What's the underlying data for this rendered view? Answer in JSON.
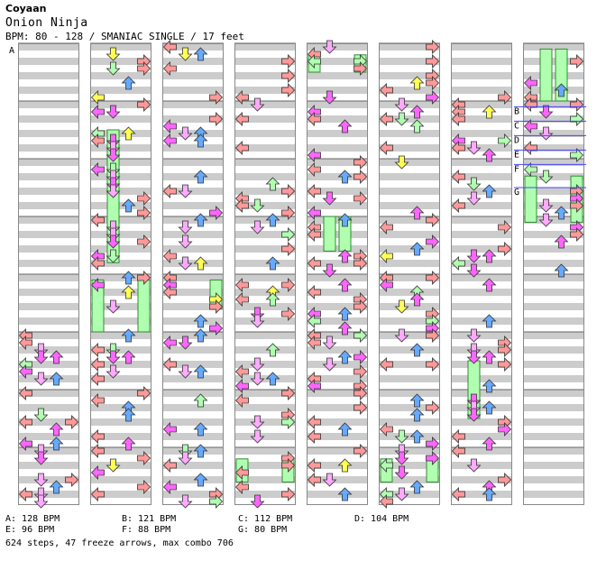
{
  "song": {
    "artist": "Coyaan",
    "title": "Onion Ninja",
    "info": "BPM: 80 - 128 / SMANIAC SINGLE / 17 feet"
  },
  "chart": {
    "columns": 8,
    "measures_per_column": 8,
    "colors": {
      "stripe_gray": "#cccccc",
      "left_right_note": "#ff9999",
      "down_note": "#ffaaff",
      "up_note": "#66aaff",
      "eighth_note": "#ff66ff",
      "freeze_arrow": "#b0ffb0",
      "mine": "#ffff55",
      "bpm_line": "#4444ff"
    },
    "segment_labels": [
      {
        "letter": "A"
      },
      {
        "letter": "B"
      },
      {
        "letter": "C"
      },
      {
        "letter": "D"
      },
      {
        "letter": "E"
      },
      {
        "letter": "F"
      },
      {
        "letter": "G"
      }
    ]
  },
  "bpm_legend": [
    {
      "text": "A: 128 BPM"
    },
    {
      "text": "B: 121 BPM"
    },
    {
      "text": "C: 112 BPM"
    },
    {
      "text": "D: 104 BPM"
    },
    {
      "text": "E: 96 BPM"
    },
    {
      "text": "F: 88 BPM"
    },
    {
      "text": "G: 80 BPM"
    }
  ],
  "stats": "624 steps, 47 freeze arrows, max combo 706"
}
